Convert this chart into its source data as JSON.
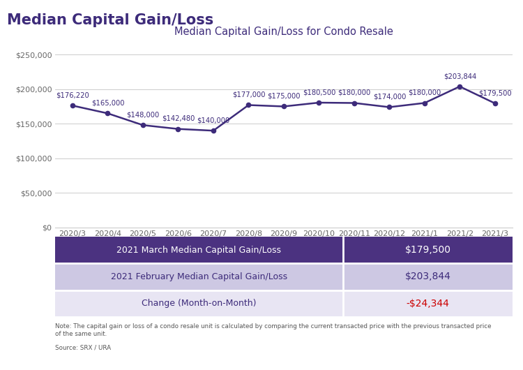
{
  "title_main": "Median Capital Gain/Loss",
  "title_chart": "Median Capital Gain/Loss for Condo Resale",
  "x_labels": [
    "2020/3",
    "2020/4",
    "2020/5",
    "2020/6",
    "2020/7",
    "2020/8",
    "2020/9",
    "2020/10",
    "2020/11",
    "2020/12",
    "2021/1",
    "2021/2",
    "2021/3"
  ],
  "y_values": [
    176220,
    165000,
    148000,
    142480,
    140000,
    177000,
    175000,
    180500,
    180000,
    174000,
    180000,
    203844,
    179500
  ],
  "y_labels": [
    "$0",
    "$50,000",
    "$100,000",
    "$150,000",
    "$200,000",
    "$250,000"
  ],
  "y_ticks": [
    0,
    50000,
    100000,
    150000,
    200000,
    250000
  ],
  "ylim": [
    0,
    270000
  ],
  "line_color": "#3d2b7a",
  "marker_color": "#3d2b7a",
  "annotation_color": "#3d2b7a",
  "grid_color": "#cccccc",
  "bg_color": "#ffffff",
  "table_row1_bg": "#4b3280",
  "table_row1_text": "#ffffff",
  "table_row1_label": "2021 March Median Capital Gain/Loss",
  "table_row1_value": "$179,500",
  "table_row2_bg": "#cdc8e3",
  "table_row2_text": "#3d2b7a",
  "table_row2_label": "2021 February Median Capital Gain/Loss",
  "table_row2_value": "$203,844",
  "table_row3_bg": "#e8e5f3",
  "table_row3_text": "#3d2b7a",
  "table_row3_label": "Change (Month-on-Month)",
  "table_row3_value": "-$24,344",
  "table_row3_value_color": "#cc0000",
  "note_text": "Note: The capital gain or loss of a condo resale unit is calculated by comparing the current transacted price with the previous transacted price\nof the same unit.",
  "source_text": "Source: SRX / URA",
  "value_labels": [
    "$176,220",
    "$165,000",
    "$148,000",
    "$142,480",
    "$140,000",
    "$177,000",
    "$175,000",
    "$180,500",
    "$180,000",
    "$174,000",
    "$180,000",
    "$203,844",
    "$179,500"
  ],
  "title_main_color": "#3d2b7a",
  "title_main_fontsize": 15,
  "title_chart_fontsize": 10.5,
  "xlabel_fontsize": 8,
  "ylabel_fontsize": 8,
  "annotation_fontsize": 7.2
}
